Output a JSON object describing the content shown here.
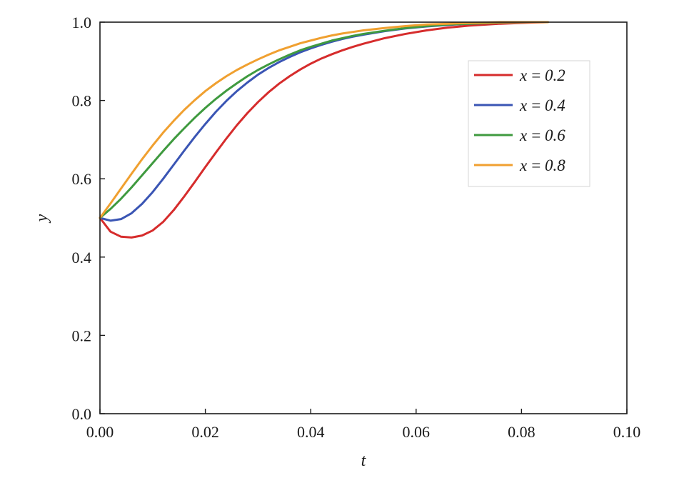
{
  "chart_data": {
    "type": "line",
    "xlabel": "t",
    "ylabel": "y",
    "xlim": [
      0.0,
      0.1
    ],
    "ylim": [
      0.0,
      1.0
    ],
    "xticks": [
      "0.00",
      "0.02",
      "0.04",
      "0.06",
      "0.08",
      "0.10"
    ],
    "yticks": [
      "0.0",
      "0.2",
      "0.4",
      "0.6",
      "0.8",
      "1.0"
    ],
    "grid": false,
    "legend_position": "top-right",
    "series": [
      {
        "name": "x = 0.2",
        "color": "#d62c2c",
        "x": [
          0.0,
          0.002,
          0.004,
          0.006,
          0.008,
          0.01,
          0.012,
          0.014,
          0.016,
          0.018,
          0.02,
          0.022,
          0.024,
          0.026,
          0.028,
          0.03,
          0.032,
          0.034,
          0.036,
          0.038,
          0.04,
          0.042,
          0.044,
          0.046,
          0.048,
          0.05,
          0.054,
          0.058,
          0.062,
          0.066,
          0.07,
          0.076,
          0.082,
          0.085
        ],
        "y": [
          0.5,
          0.465,
          0.452,
          0.45,
          0.455,
          0.468,
          0.49,
          0.52,
          0.555,
          0.592,
          0.63,
          0.667,
          0.703,
          0.737,
          0.768,
          0.796,
          0.821,
          0.843,
          0.862,
          0.879,
          0.894,
          0.907,
          0.918,
          0.928,
          0.937,
          0.945,
          0.959,
          0.97,
          0.979,
          0.986,
          0.991,
          0.996,
          0.999,
          1.0
        ]
      },
      {
        "name": "x = 0.4",
        "color": "#3a55b4",
        "x": [
          0.0,
          0.002,
          0.004,
          0.006,
          0.008,
          0.01,
          0.012,
          0.014,
          0.016,
          0.018,
          0.02,
          0.022,
          0.024,
          0.026,
          0.028,
          0.03,
          0.032,
          0.034,
          0.036,
          0.038,
          0.04,
          0.042,
          0.044,
          0.046,
          0.048,
          0.05,
          0.054,
          0.058,
          0.062,
          0.066,
          0.07,
          0.076,
          0.082,
          0.085
        ],
        "y": [
          0.5,
          0.493,
          0.497,
          0.512,
          0.536,
          0.566,
          0.6,
          0.636,
          0.672,
          0.707,
          0.74,
          0.771,
          0.799,
          0.824,
          0.846,
          0.866,
          0.883,
          0.898,
          0.911,
          0.923,
          0.933,
          0.942,
          0.95,
          0.957,
          0.963,
          0.968,
          0.977,
          0.984,
          0.989,
          0.993,
          0.996,
          0.999,
          1.0,
          1.0
        ]
      },
      {
        "name": "x = 0.6",
        "color": "#3f9a3f",
        "x": [
          0.0,
          0.002,
          0.004,
          0.006,
          0.008,
          0.01,
          0.012,
          0.014,
          0.016,
          0.018,
          0.02,
          0.022,
          0.024,
          0.026,
          0.028,
          0.03,
          0.032,
          0.034,
          0.036,
          0.038,
          0.04,
          0.042,
          0.044,
          0.046,
          0.048,
          0.05,
          0.054,
          0.058,
          0.062,
          0.066,
          0.07,
          0.076,
          0.082,
          0.085
        ],
        "y": [
          0.5,
          0.523,
          0.549,
          0.578,
          0.609,
          0.64,
          0.671,
          0.701,
          0.729,
          0.756,
          0.781,
          0.804,
          0.825,
          0.844,
          0.862,
          0.878,
          0.892,
          0.905,
          0.917,
          0.928,
          0.937,
          0.945,
          0.953,
          0.959,
          0.965,
          0.97,
          0.978,
          0.985,
          0.99,
          0.994,
          0.996,
          0.999,
          1.0,
          1.0
        ]
      },
      {
        "name": "x = 0.8",
        "color": "#f0a030",
        "x": [
          0.0,
          0.002,
          0.004,
          0.006,
          0.008,
          0.01,
          0.012,
          0.014,
          0.016,
          0.018,
          0.02,
          0.022,
          0.024,
          0.026,
          0.028,
          0.03,
          0.032,
          0.034,
          0.036,
          0.038,
          0.04,
          0.042,
          0.044,
          0.046,
          0.048,
          0.05,
          0.054,
          0.058,
          0.062,
          0.066,
          0.07,
          0.076,
          0.082,
          0.085
        ],
        "y": [
          0.5,
          0.537,
          0.575,
          0.613,
          0.65,
          0.685,
          0.718,
          0.748,
          0.776,
          0.801,
          0.824,
          0.844,
          0.862,
          0.878,
          0.892,
          0.905,
          0.917,
          0.928,
          0.937,
          0.946,
          0.953,
          0.96,
          0.966,
          0.971,
          0.975,
          0.979,
          0.985,
          0.99,
          0.994,
          0.996,
          0.998,
          1.0,
          1.0,
          1.0
        ]
      }
    ]
  }
}
